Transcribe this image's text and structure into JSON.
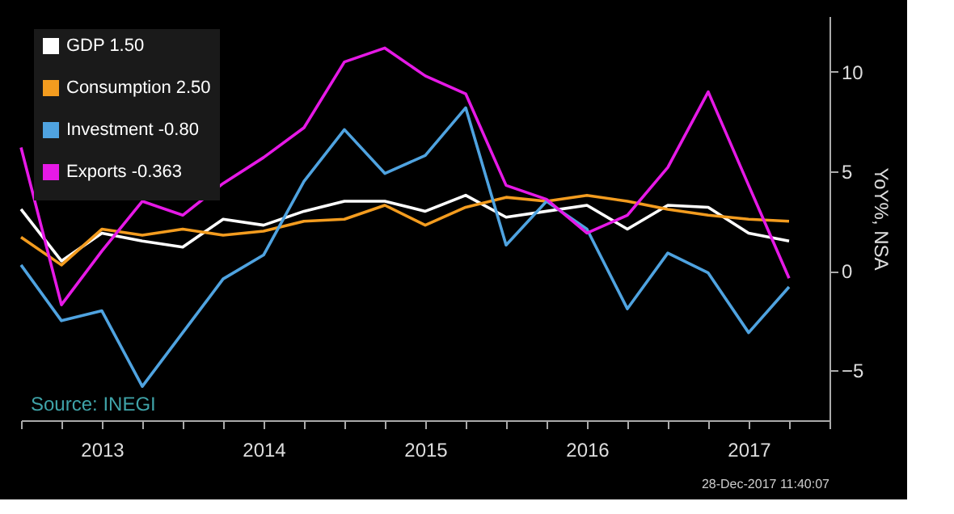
{
  "chart_data": {
    "type": "line",
    "x": [
      2013.0,
      2013.25,
      2013.5,
      2013.75,
      2014.0,
      2014.25,
      2014.5,
      2014.75,
      2015.0,
      2015.25,
      2015.5,
      2015.75,
      2016.0,
      2016.25,
      2016.5,
      2016.75,
      2017.0,
      2017.25,
      2017.5,
      2017.75
    ],
    "series": [
      {
        "name": "GDP 1.50",
        "color": "#ffffff",
        "values": [
          3.1,
          0.5,
          1.9,
          1.5,
          1.2,
          2.6,
          2.3,
          3.0,
          3.5,
          3.5,
          3.0,
          3.8,
          2.7,
          3.0,
          3.3,
          2.1,
          3.3,
          3.2,
          1.9,
          1.5
        ]
      },
      {
        "name": "Consumption 2.50",
        "color": "#f39c1f",
        "values": [
          1.7,
          0.3,
          2.1,
          1.8,
          2.1,
          1.8,
          2.0,
          2.5,
          2.6,
          3.3,
          2.3,
          3.2,
          3.7,
          3.5,
          3.8,
          3.5,
          3.1,
          2.8,
          2.6,
          2.5
        ]
      },
      {
        "name": "Investment -0.80",
        "color": "#4fa3e0",
        "values": [
          0.3,
          -2.5,
          -2.0,
          -5.8,
          -3.1,
          -0.4,
          0.8,
          4.5,
          7.1,
          4.9,
          5.8,
          8.2,
          1.3,
          3.5,
          2.1,
          -1.9,
          0.9,
          -0.1,
          -3.1,
          -0.8
        ]
      },
      {
        "name": "Exports -0.363",
        "color": "#e619e6",
        "values": [
          6.2,
          -1.7,
          1.0,
          3.5,
          2.8,
          4.4,
          5.7,
          7.2,
          10.5,
          11.2,
          9.8,
          8.9,
          4.3,
          3.6,
          1.9,
          2.8,
          5.2,
          9.0,
          4.3,
          -0.363
        ]
      }
    ],
    "xlim": [
      2013.0,
      2018.0
    ],
    "xticks": [
      {
        "value": 2013.0,
        "label": null
      },
      {
        "value": 2013.25,
        "label": null
      },
      {
        "value": 2013.5,
        "label": "2013"
      },
      {
        "value": 2013.75,
        "label": null
      },
      {
        "value": 2014.0,
        "label": null
      },
      {
        "value": 2014.25,
        "label": null
      },
      {
        "value": 2014.5,
        "label": "2014"
      },
      {
        "value": 2014.75,
        "label": null
      },
      {
        "value": 2015.0,
        "label": null
      },
      {
        "value": 2015.25,
        "label": null
      },
      {
        "value": 2015.5,
        "label": "2015"
      },
      {
        "value": 2015.75,
        "label": null
      },
      {
        "value": 2016.0,
        "label": null
      },
      {
        "value": 2016.25,
        "label": null
      },
      {
        "value": 2016.5,
        "label": "2016"
      },
      {
        "value": 2016.75,
        "label": null
      },
      {
        "value": 2017.0,
        "label": null
      },
      {
        "value": 2017.25,
        "label": null
      },
      {
        "value": 2017.5,
        "label": "2017"
      },
      {
        "value": 2017.75,
        "label": null
      },
      {
        "value": 2018.0,
        "label": null
      }
    ],
    "ylim": [
      -7.5,
      12.8
    ],
    "yticks": [
      -5,
      0,
      5,
      10
    ],
    "ylabel": "YoY%, NSA",
    "legend": "top left",
    "grid": false,
    "annotations": [
      "Source: INEGI",
      "28-Dec-2017 11:40:07"
    ]
  }
}
